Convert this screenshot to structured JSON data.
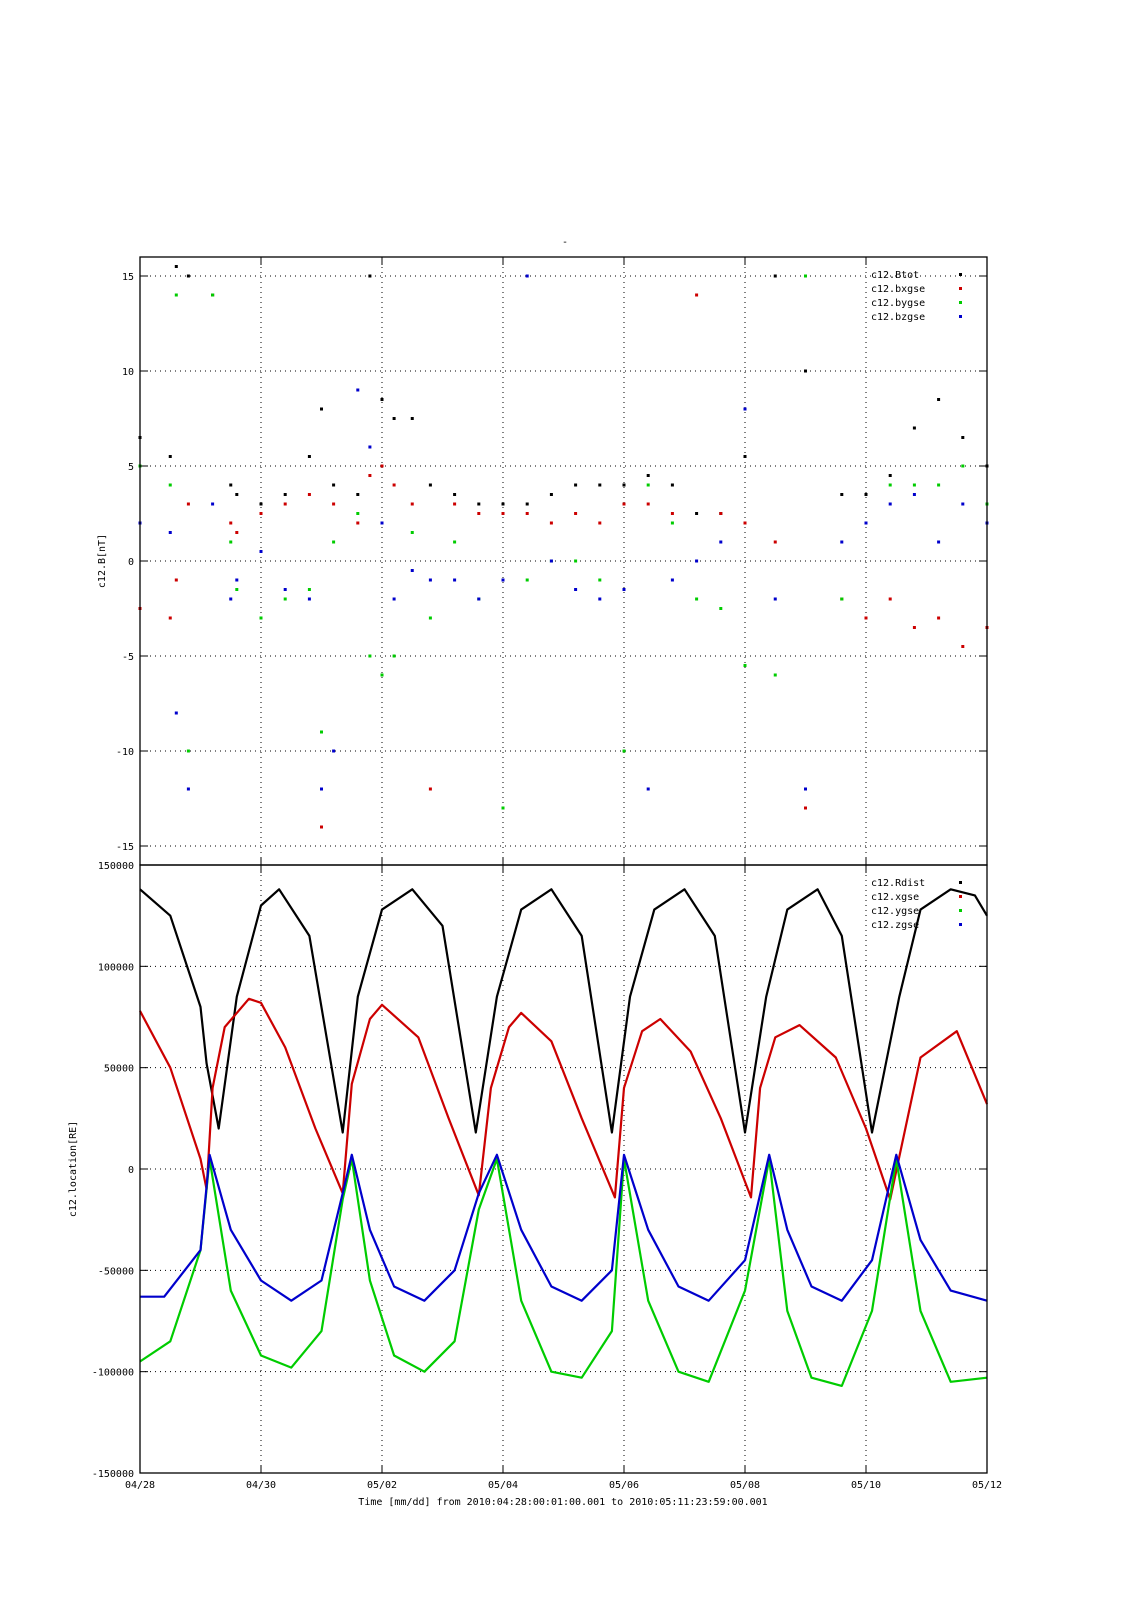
{
  "figure": {
    "top_title": "-",
    "xlabel": "Time [mm/dd]  from 2010:04:28:00:01:00.001  to  2010:05:11:23:59:00.001",
    "x_tick_labels": [
      "04/28",
      "04/30",
      "05/02",
      "05/04",
      "05/06",
      "05/08",
      "05/10",
      "05/12"
    ]
  },
  "chart_data": [
    {
      "type": "scatter",
      "ylabel": "c12.B[nT]",
      "xlim": [
        0,
        14
      ],
      "x_unit": "days from 04/28 00:00",
      "ylim": [
        -16,
        16
      ],
      "yticks": [
        -15,
        -10,
        -5,
        0,
        5,
        10,
        15
      ],
      "ytick_labels": [
        "-15",
        "-10",
        "-5",
        "0",
        "5",
        "10",
        "15"
      ],
      "legend_position": "top-right",
      "grid": true,
      "series": [
        {
          "name": "c12.Btot",
          "color": "#000000",
          "x": [
            0.0,
            0.5,
            0.6,
            0.8,
            1.2,
            1.5,
            1.6,
            2.0,
            2.4,
            2.8,
            3.0,
            3.2,
            3.6,
            3.8,
            4.0,
            4.2,
            4.5,
            4.8,
            5.2,
            5.6,
            6.0,
            6.4,
            6.8,
            7.2,
            7.6,
            8.0,
            8.4,
            8.8,
            9.2,
            9.6,
            10.0,
            10.5,
            11.0,
            11.6,
            12.0,
            12.4,
            12.8,
            13.2,
            13.6,
            14.0
          ],
          "y": [
            6.5,
            5.5,
            15.5,
            15.0,
            14.0,
            4.0,
            3.5,
            3.0,
            3.5,
            5.5,
            8.0,
            4.0,
            3.5,
            15.0,
            8.5,
            7.5,
            7.5,
            4.0,
            3.5,
            3.0,
            3.0,
            3.0,
            3.5,
            4.0,
            4.0,
            4.0,
            4.5,
            4.0,
            2.5,
            2.5,
            5.5,
            15.0,
            10.0,
            3.5,
            3.5,
            4.5,
            7.0,
            8.5,
            6.5,
            5.0
          ]
        },
        {
          "name": "c12.bxgse",
          "color": "#cc0000",
          "x": [
            0.0,
            0.5,
            0.6,
            0.8,
            1.2,
            1.5,
            1.6,
            2.0,
            2.4,
            2.8,
            3.0,
            3.2,
            3.6,
            3.8,
            4.0,
            4.2,
            4.5,
            4.8,
            5.2,
            5.6,
            6.0,
            6.4,
            6.8,
            7.2,
            7.6,
            8.0,
            8.4,
            8.8,
            9.2,
            9.6,
            10.0,
            10.5,
            11.0,
            11.6,
            12.0,
            12.4,
            12.8,
            13.2,
            13.6,
            14.0
          ],
          "y": [
            -2.5,
            -3.0,
            -1.0,
            3.0,
            14.0,
            2.0,
            1.5,
            2.5,
            3.0,
            3.5,
            -14.0,
            3.0,
            2.0,
            4.5,
            5.0,
            4.0,
            3.0,
            -12.0,
            3.0,
            2.5,
            2.5,
            2.5,
            2.0,
            2.5,
            2.0,
            3.0,
            3.0,
            2.5,
            14.0,
            2.5,
            2.0,
            1.0,
            -13.0,
            -2.0,
            -3.0,
            -2.0,
            -3.5,
            -3.0,
            -4.5,
            -3.5
          ]
        },
        {
          "name": "c12.bygse",
          "color": "#00cc00",
          "x": [
            0.0,
            0.5,
            0.6,
            0.8,
            1.2,
            1.5,
            1.6,
            2.0,
            2.4,
            2.8,
            3.0,
            3.2,
            3.6,
            3.8,
            4.0,
            4.2,
            4.5,
            4.8,
            5.2,
            5.6,
            6.0,
            6.4,
            6.8,
            7.2,
            7.6,
            8.0,
            8.4,
            8.8,
            9.2,
            9.6,
            10.0,
            10.5,
            11.0,
            11.6,
            12.0,
            12.4,
            12.8,
            13.2,
            13.6,
            14.0
          ],
          "y": [
            5.0,
            4.0,
            14.0,
            -10.0,
            14.0,
            1.0,
            -1.5,
            -3.0,
            -2.0,
            -1.5,
            -9.0,
            1.0,
            2.5,
            -5.0,
            -6.0,
            -5.0,
            1.5,
            -3.0,
            1.0,
            -2.0,
            -13.0,
            -1.0,
            0.0,
            0.0,
            -1.0,
            -10.0,
            4.0,
            2.0,
            -2.0,
            -2.5,
            -5.5,
            -6.0,
            15.0,
            -2.0,
            2.0,
            4.0,
            4.0,
            4.0,
            5.0,
            3.0
          ]
        },
        {
          "name": "c12.bzgse",
          "color": "#0000cc",
          "x": [
            0.0,
            0.5,
            0.6,
            0.8,
            1.2,
            1.5,
            1.6,
            2.0,
            2.4,
            2.8,
            3.0,
            3.2,
            3.6,
            3.8,
            4.0,
            4.2,
            4.5,
            4.8,
            5.2,
            5.6,
            6.0,
            6.4,
            6.8,
            7.2,
            7.6,
            8.0,
            8.4,
            8.8,
            9.2,
            9.6,
            10.0,
            10.5,
            11.0,
            11.6,
            12.0,
            12.4,
            12.8,
            13.2,
            13.6,
            14.0
          ],
          "y": [
            2.0,
            1.5,
            -8.0,
            -12.0,
            3.0,
            -2.0,
            -1.0,
            0.5,
            -1.5,
            -2.0,
            -12.0,
            -10.0,
            9.0,
            6.0,
            2.0,
            -2.0,
            -0.5,
            -1.0,
            -1.0,
            -2.0,
            -1.0,
            15.0,
            0.0,
            -1.5,
            -2.0,
            -1.5,
            -12.0,
            -1.0,
            0.0,
            1.0,
            8.0,
            -2.0,
            -12.0,
            1.0,
            2.0,
            3.0,
            3.5,
            1.0,
            3.0,
            2.0
          ]
        }
      ]
    },
    {
      "type": "line",
      "ylabel": "c12.location[RE]",
      "xlim": [
        0,
        14
      ],
      "x_unit": "days from 04/28 00:00",
      "ylim": [
        -150000,
        150000
      ],
      "yticks": [
        -150000,
        -100000,
        -50000,
        0,
        50000,
        100000,
        150000
      ],
      "ytick_labels": [
        "-150000",
        "-100000",
        "-50000",
        "0",
        "50000",
        "100000",
        "150000"
      ],
      "legend_position": "top-right",
      "grid": true,
      "series": [
        {
          "name": "c12.Rdist",
          "color": "#000000",
          "x": [
            0.0,
            0.5,
            1.0,
            1.1,
            1.3,
            1.6,
            2.0,
            2.3,
            2.8,
            3.35,
            3.6,
            4.0,
            4.5,
            5.0,
            5.55,
            5.9,
            6.3,
            6.8,
            7.3,
            7.8,
            8.1,
            8.5,
            9.0,
            9.5,
            10.0,
            10.35,
            10.7,
            11.2,
            11.6,
            12.1,
            12.55,
            12.9,
            13.4,
            13.8,
            14.0
          ],
          "y": [
            138000,
            125000,
            80000,
            52000,
            20000,
            85000,
            130000,
            138000,
            115000,
            18000,
            85000,
            128000,
            138000,
            120000,
            18000,
            85000,
            128000,
            138000,
            115000,
            18000,
            85000,
            128000,
            138000,
            115000,
            18000,
            85000,
            128000,
            138000,
            115000,
            18000,
            85000,
            128000,
            138000,
            135000,
            125000
          ]
        },
        {
          "name": "c12.xgse",
          "color": "#cc0000",
          "x": [
            0.0,
            0.5,
            1.0,
            1.1,
            1.2,
            1.4,
            1.8,
            2.0,
            2.4,
            2.9,
            3.35,
            3.5,
            3.8,
            4.0,
            4.6,
            5.1,
            5.6,
            5.8,
            6.1,
            6.3,
            6.8,
            7.3,
            7.85,
            8.0,
            8.3,
            8.6,
            9.1,
            9.6,
            10.1,
            10.25,
            10.5,
            10.9,
            11.5,
            12.0,
            12.4,
            12.9,
            13.5,
            14.0
          ],
          "y": [
            78000,
            50000,
            5000,
            -10000,
            40000,
            70000,
            84000,
            82000,
            60000,
            20000,
            -12000,
            42000,
            74000,
            81000,
            65000,
            25000,
            -13000,
            40000,
            70000,
            77000,
            63000,
            25000,
            -14000,
            40000,
            68000,
            74000,
            58000,
            25000,
            -14000,
            40000,
            65000,
            71000,
            55000,
            20000,
            -15000,
            55000,
            68000,
            32000
          ]
        },
        {
          "name": "c12.ygse",
          "color": "#00cc00",
          "x": [
            0.0,
            0.5,
            1.0,
            1.15,
            1.5,
            2.0,
            2.5,
            3.0,
            3.35,
            3.5,
            3.8,
            4.2,
            4.7,
            5.2,
            5.6,
            5.9,
            6.3,
            6.8,
            7.3,
            7.8,
            8.0,
            8.4,
            8.9,
            9.4,
            10.0,
            10.4,
            10.7,
            11.1,
            11.6,
            12.1,
            12.5,
            12.9,
            13.4,
            14.0
          ],
          "y": [
            -95000,
            -85000,
            -40000,
            5000,
            -60000,
            -92000,
            -98000,
            -80000,
            -15000,
            5000,
            -55000,
            -92000,
            -100000,
            -85000,
            -20000,
            5000,
            -65000,
            -100000,
            -103000,
            -80000,
            5000,
            -65000,
            -100000,
            -105000,
            -60000,
            5000,
            -70000,
            -103000,
            -107000,
            -70000,
            5000,
            -70000,
            -105000,
            -103000
          ]
        },
        {
          "name": "c12.zgse",
          "color": "#0000cc",
          "x": [
            0.0,
            0.4,
            1.0,
            1.15,
            1.5,
            2.0,
            2.5,
            3.0,
            3.35,
            3.5,
            3.8,
            4.2,
            4.7,
            5.2,
            5.6,
            5.9,
            6.3,
            6.8,
            7.3,
            7.8,
            8.0,
            8.4,
            8.9,
            9.4,
            10.0,
            10.4,
            10.7,
            11.1,
            11.6,
            12.1,
            12.5,
            12.9,
            13.4,
            14.0
          ],
          "y": [
            -63000,
            -63000,
            -40000,
            7000,
            -30000,
            -55000,
            -65000,
            -55000,
            -12000,
            7000,
            -30000,
            -58000,
            -65000,
            -50000,
            -12000,
            7000,
            -30000,
            -58000,
            -65000,
            -50000,
            7000,
            -30000,
            -58000,
            -65000,
            -45000,
            7000,
            -30000,
            -58000,
            -65000,
            -45000,
            7000,
            -35000,
            -60000,
            -65000
          ]
        }
      ]
    }
  ]
}
